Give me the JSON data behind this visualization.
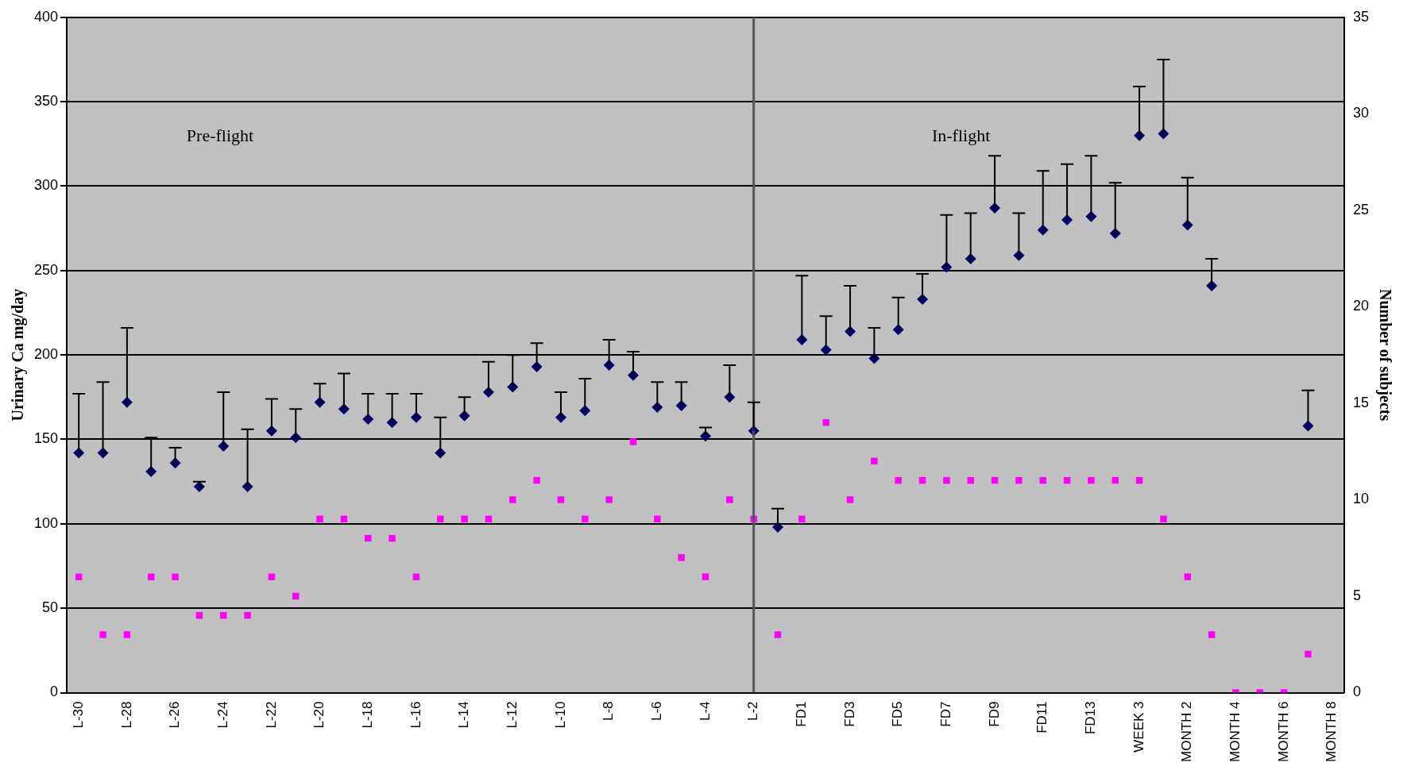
{
  "chart_data": {
    "type": "scatter",
    "ylabel": "Urinary Ca mg/day",
    "y2label": "Number of subjects",
    "categories": [
      "L-30",
      null,
      "L-28",
      null,
      "L-26",
      null,
      "L-24",
      null,
      "L-22",
      null,
      "L-20",
      null,
      "L-18",
      null,
      "L-16",
      null,
      "L-14",
      null,
      "L-12",
      null,
      "L-10",
      null,
      "L-8",
      null,
      "L-6",
      null,
      "L-4",
      null,
      "L-2",
      null,
      "FD1",
      null,
      "FD3",
      null,
      "FD5",
      null,
      "FD7",
      null,
      "FD9",
      null,
      "FD11",
      null,
      "FD13",
      null,
      "WEEK 3",
      null,
      "MONTH 2",
      null,
      "MONTH 4",
      null,
      "MONTH 6",
      null,
      "MONTH 8"
    ],
    "series": [
      {
        "color": "#000066",
        "marker": "diamond",
        "values": [
          142,
          142,
          172,
          131,
          136,
          122,
          146,
          122,
          155,
          151,
          172,
          168,
          162,
          160,
          163,
          142,
          164,
          178,
          181,
          193,
          163,
          167,
          194,
          188,
          169,
          170,
          152,
          175,
          155,
          98,
          209,
          203,
          214,
          198,
          215,
          233,
          252,
          257,
          287,
          259,
          274,
          280,
          282,
          272,
          330,
          331,
          277,
          241,
          null,
          null,
          null,
          158,
          null
        ],
        "errors": [
          [
            142,
            177
          ],
          [
            142,
            184
          ],
          [
            172,
            216
          ],
          [
            131,
            151
          ],
          [
            136,
            145
          ],
          [
            122,
            125
          ],
          [
            146,
            178
          ],
          [
            122,
            156
          ],
          [
            155,
            174
          ],
          [
            151,
            168
          ],
          [
            172,
            183
          ],
          [
            168,
            189
          ],
          [
            162,
            177
          ],
          [
            160,
            177
          ],
          [
            163,
            177
          ],
          [
            142,
            163
          ],
          [
            164,
            175
          ],
          [
            178,
            196
          ],
          [
            181,
            200
          ],
          [
            193,
            207
          ],
          [
            163,
            178
          ],
          [
            167,
            186
          ],
          [
            194,
            209
          ],
          [
            188,
            202
          ],
          [
            169,
            184
          ],
          [
            170,
            184
          ],
          [
            152,
            157
          ],
          [
            175,
            194
          ],
          [
            155,
            172
          ],
          [
            98,
            109
          ],
          [
            209,
            247
          ],
          [
            203,
            223
          ],
          [
            214,
            241
          ],
          [
            198,
            216
          ],
          [
            215,
            234
          ],
          [
            233,
            248
          ],
          [
            252,
            283
          ],
          [
            257,
            284
          ],
          [
            287,
            318
          ],
          [
            259,
            284
          ],
          [
            274,
            309
          ],
          [
            280,
            313
          ],
          [
            282,
            318
          ],
          [
            272,
            302
          ],
          [
            330,
            359
          ],
          [
            331,
            375
          ],
          [
            277,
            305
          ],
          [
            241,
            257
          ],
          null,
          null,
          null,
          [
            158,
            179
          ],
          null
        ]
      },
      {
        "color": "#ff00ff",
        "marker": "square",
        "axis": "y2",
        "values": [
          6,
          3,
          3,
          6,
          6,
          4,
          4,
          4,
          6,
          5,
          9,
          9,
          8,
          8,
          6,
          9,
          9,
          9,
          10,
          11,
          10,
          9,
          10,
          13,
          9,
          7,
          6,
          10,
          9,
          3,
          9,
          14,
          10,
          12,
          11,
          11,
          11,
          11,
          11,
          11,
          11,
          11,
          11,
          11,
          11,
          9,
          6,
          3,
          0,
          0,
          0,
          2,
          null
        ]
      }
    ],
    "ylim": [
      0,
      400
    ],
    "yticks": [
      0,
      50,
      100,
      150,
      200,
      250,
      300,
      350,
      400
    ],
    "y2lim": [
      0,
      35
    ],
    "y2ticks": [
      0,
      5,
      10,
      15,
      20,
      25,
      30,
      35
    ],
    "grid": "y",
    "legend": false,
    "ref_lines": [
      {
        "axis": "x",
        "value": "L-2",
        "color": "#555555"
      }
    ],
    "annotations": [
      "Pre-flight",
      "In-flight"
    ]
  }
}
